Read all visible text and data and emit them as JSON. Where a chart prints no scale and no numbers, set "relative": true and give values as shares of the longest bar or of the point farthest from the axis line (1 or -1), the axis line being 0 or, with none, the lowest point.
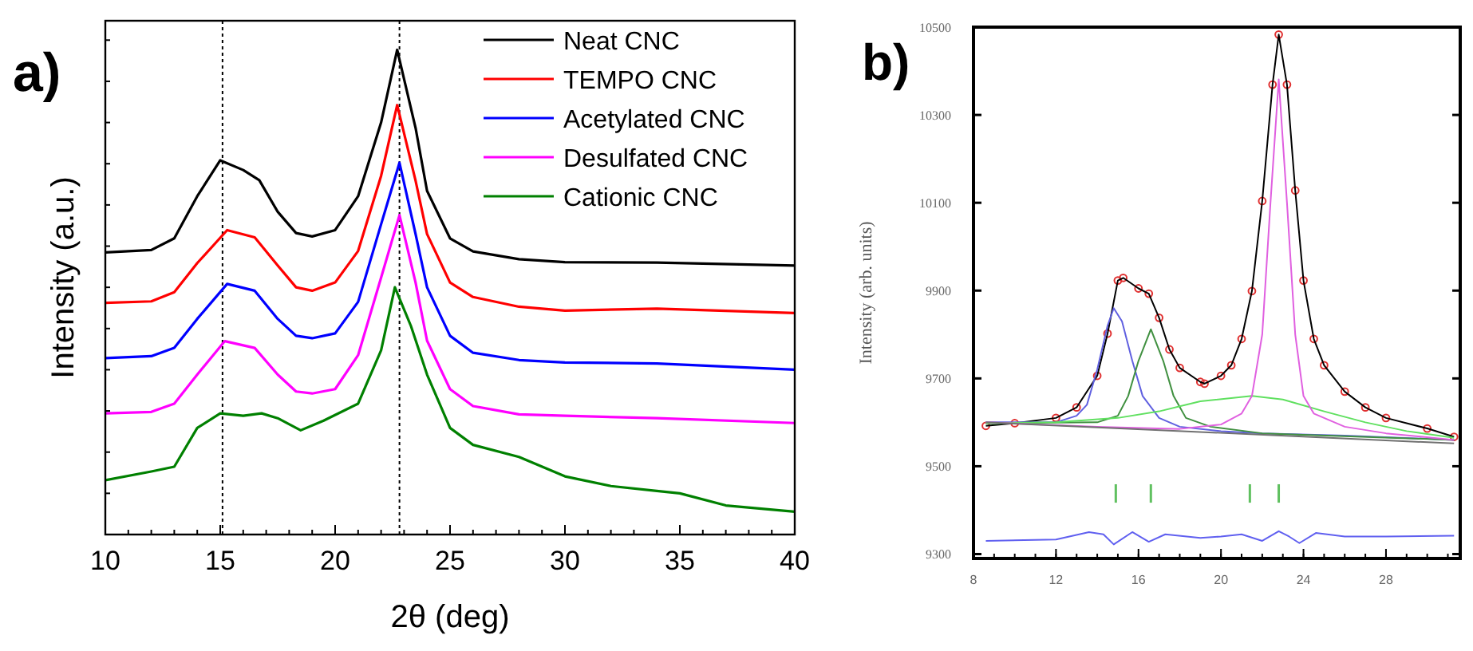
{
  "chart_data": [
    {
      "type": "line",
      "title": "a)",
      "xlabel": "2θ (deg)",
      "ylabel": "Intensity (a.u.)",
      "relative": true,
      "xlim": [
        10,
        40
      ],
      "xticks": [
        10,
        15,
        20,
        25,
        30,
        35,
        40
      ],
      "legend": "top right",
      "grid": false,
      "ref_lines": [
        {
          "axis": "x",
          "value": 15.1,
          "color": "#000000",
          "line_style": "dotted"
        },
        {
          "axis": "x",
          "value": 22.8,
          "color": "#000000",
          "line_style": "dotted"
        }
      ],
      "series": [
        {
          "name": "Neat CNC",
          "color": "#000000",
          "x": [
            10,
            12,
            13,
            14,
            15,
            16,
            16.7,
            17.5,
            18.3,
            19,
            20,
            21,
            22,
            22.7,
            23.5,
            24,
            25,
            26,
            28,
            30,
            34,
            40
          ],
          "values": [
            0.582,
            0.587,
            0.611,
            0.698,
            0.772,
            0.752,
            0.731,
            0.666,
            0.622,
            0.615,
            0.628,
            0.698,
            0.85,
            1,
            0.839,
            0.709,
            0.611,
            0.584,
            0.568,
            0.562,
            0.561,
            0.555
          ]
        },
        {
          "name": "TEMPO CNC",
          "color": "#ff0000",
          "x": [
            10,
            12,
            13,
            14,
            15.3,
            16.5,
            17.5,
            18.3,
            19,
            20,
            21,
            22,
            22.7,
            23.5,
            24,
            25,
            26,
            28,
            30,
            34,
            40
          ],
          "values": [
            0.478,
            0.481,
            0.5,
            0.56,
            0.628,
            0.613,
            0.555,
            0.51,
            0.503,
            0.52,
            0.585,
            0.74,
            0.886,
            0.73,
            0.62,
            0.52,
            0.49,
            0.47,
            0.462,
            0.466,
            0.457
          ]
        },
        {
          "name": "Acetylated CNC",
          "color": "#0000ff",
          "x": [
            10,
            12,
            13,
            14,
            15.3,
            16.5,
            17.5,
            18.3,
            19,
            20,
            21,
            22,
            22.8,
            23.5,
            24,
            25,
            26,
            28,
            30,
            34,
            40
          ],
          "values": [
            0.364,
            0.368,
            0.385,
            0.445,
            0.517,
            0.503,
            0.445,
            0.41,
            0.405,
            0.415,
            0.48,
            0.64,
            0.767,
            0.62,
            0.51,
            0.41,
            0.375,
            0.36,
            0.355,
            0.353,
            0.34
          ]
        },
        {
          "name": "Desulfated CNC",
          "color": "#ff00ff",
          "x": [
            10,
            12,
            13,
            14,
            15.2,
            16.5,
            17.5,
            18.3,
            19,
            20,
            21,
            22,
            22.8,
            23.5,
            24,
            25,
            26,
            28,
            30,
            34,
            40
          ],
          "values": [
            0.25,
            0.253,
            0.27,
            0.33,
            0.399,
            0.385,
            0.33,
            0.295,
            0.291,
            0.3,
            0.37,
            0.53,
            0.659,
            0.52,
            0.4,
            0.3,
            0.265,
            0.248,
            0.245,
            0.24,
            0.23
          ]
        },
        {
          "name": "Cationic CNC",
          "color": "#008000",
          "x": [
            10,
            12,
            13,
            14,
            15,
            16,
            16.8,
            17.5,
            18.5,
            19.5,
            21,
            22,
            22.6,
            23.3,
            24,
            25,
            26,
            28,
            30,
            32,
            34,
            35,
            37,
            40
          ],
          "values": [
            0.112,
            0.13,
            0.14,
            0.22,
            0.25,
            0.245,
            0.25,
            0.24,
            0.215,
            0.235,
            0.27,
            0.38,
            0.51,
            0.43,
            0.33,
            0.22,
            0.185,
            0.16,
            0.12,
            0.1,
            0.09,
            0.085,
            0.06,
            0.047
          ]
        }
      ]
    },
    {
      "type": "line",
      "title": "b)",
      "ylabel": "Intensity (arb. units)",
      "xlim": [
        8,
        31.6
      ],
      "xticks": [
        8,
        12,
        16,
        20,
        24,
        28
      ],
      "ylim": [
        9290,
        10500
      ],
      "yticks": [
        9300,
        9500,
        9700,
        9900,
        10100,
        10300,
        10500
      ],
      "grid": false,
      "legend": false,
      "series": [
        {
          "type": "scatter",
          "marker": "circle",
          "color": "#e03030",
          "x": [
            8.6,
            10,
            12,
            13,
            14,
            14.5,
            15,
            15.26,
            16,
            16.5,
            17,
            17.5,
            18,
            19,
            19.2,
            20,
            20.5,
            21,
            21.5,
            22,
            22.5,
            22.8,
            23.2,
            23.6,
            24,
            24.5,
            25,
            26,
            27,
            28,
            30,
            31.3
          ],
          "values": [
            9592,
            9598,
            9610,
            9634,
            9706,
            9802,
            9923,
            9929,
            9905,
            9893,
            9838,
            9766,
            9724,
            9692,
            9688,
            9706,
            9730,
            9790,
            9899,
            10104,
            10369,
            10483,
            10369,
            10128,
            9923,
            9790,
            9730,
            9670,
            9634,
            9610,
            9586,
            9567
          ]
        },
        {
          "color": "#000000",
          "x": [
            8.6,
            10,
            12,
            13,
            14,
            14.5,
            15,
            15.26,
            16,
            16.5,
            17,
            17.5,
            18,
            19,
            19.2,
            20,
            20.5,
            21,
            21.5,
            22,
            22.5,
            22.8,
            23.2,
            23.6,
            24,
            24.5,
            25,
            26,
            27,
            28,
            30,
            31.3
          ],
          "values": [
            9592,
            9598,
            9610,
            9634,
            9706,
            9802,
            9923,
            9929,
            9905,
            9893,
            9838,
            9766,
            9724,
            9692,
            9688,
            9706,
            9730,
            9790,
            9899,
            10104,
            10369,
            10483,
            10369,
            10128,
            9923,
            9790,
            9730,
            9670,
            9634,
            9610,
            9586,
            9567
          ]
        },
        {
          "color": "#6060e0",
          "x": [
            8.6,
            12,
            13,
            13.5,
            14,
            14.5,
            14.8,
            15.2,
            15.7,
            16.2,
            17,
            18,
            20,
            22,
            26,
            31.3
          ],
          "values": [
            9600,
            9600,
            9615,
            9640,
            9720,
            9820,
            9860,
            9830,
            9740,
            9660,
            9610,
            9590,
            9580,
            9575,
            9570,
            9560
          ]
        },
        {
          "color": "#409040",
          "x": [
            8.6,
            14,
            15,
            15.5,
            16,
            16.6,
            17.2,
            17.7,
            18.3,
            19.5,
            22,
            31.3
          ],
          "values": [
            9598,
            9600,
            9615,
            9660,
            9740,
            9812,
            9740,
            9660,
            9610,
            9590,
            9575,
            9560
          ]
        },
        {
          "color": "#60e060",
          "x": [
            8.6,
            12,
            15,
            17,
            19,
            21.5,
            23,
            25,
            27,
            29,
            31.3
          ],
          "values": [
            9598,
            9600,
            9610,
            9625,
            9648,
            9660,
            9652,
            9625,
            9600,
            9580,
            9565
          ]
        },
        {
          "color": "#e060e0",
          "x": [
            8.6,
            14,
            18,
            20,
            21,
            21.5,
            22,
            22.4,
            22.8,
            23.2,
            23.6,
            24,
            24.5,
            26,
            28,
            31.3
          ],
          "values": [
            9600,
            9590,
            9585,
            9595,
            9620,
            9660,
            9800,
            10100,
            10381,
            10100,
            9800,
            9660,
            9620,
            9590,
            9575,
            9560
          ]
        },
        {
          "color": "#707070",
          "x": [
            8.6,
            31.3
          ],
          "values": [
            9600,
            9552
          ]
        },
        {
          "color": "#6060f0",
          "x": [
            8.6,
            12,
            13.6,
            14.3,
            14.8,
            15.7,
            16.5,
            17.3,
            19,
            20,
            21,
            22,
            22.8,
            23.3,
            23.8,
            24.6,
            26,
            28,
            31.3
          ],
          "values": [
            9330,
            9333,
            9350,
            9345,
            9322,
            9350,
            9328,
            9345,
            9337,
            9340,
            9345,
            9330,
            9352,
            9340,
            9325,
            9348,
            9340,
            9340,
            9342
          ]
        },
        {
          "type": "bar",
          "color": "#60c060",
          "x": [
            14.9,
            16.6,
            21.4,
            22.8
          ],
          "base": [
            9417,
            9417,
            9417,
            9417
          ],
          "values": [
            42,
            42,
            42,
            42
          ]
        }
      ]
    }
  ]
}
